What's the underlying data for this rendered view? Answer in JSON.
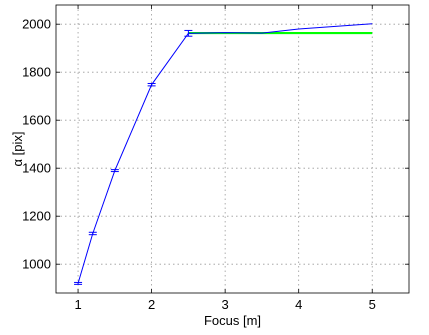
{
  "chart_data": {
    "type": "line",
    "title": "",
    "xlabel": "Focus [m]",
    "ylabel": "α [pix]",
    "xlim": [
      0.7,
      5.5
    ],
    "ylim": [
      880,
      2080
    ],
    "xticks": [
      1,
      2,
      3,
      4,
      5
    ],
    "yticks": [
      1000,
      1200,
      1400,
      1600,
      1800,
      2000
    ],
    "x_tick_labels": [
      "1",
      "2",
      "3",
      "4",
      "5"
    ],
    "y_tick_labels": [
      "1000",
      "1200",
      "1400",
      "1600",
      "1800",
      "2000"
    ],
    "grid": true,
    "legend": "none",
    "series": [
      {
        "color": "#0000ff",
        "x": [
          1,
          1.2,
          1.5,
          2,
          2.5,
          3,
          3.5,
          4,
          5
        ],
        "y": [
          920,
          1128,
          1390,
          1748,
          1962,
          1965,
          1963,
          1980,
          2002
        ],
        "error": [
          4,
          5,
          4,
          5,
          12,
          0,
          0,
          0,
          0
        ]
      },
      {
        "color": "#00ff00",
        "x": [
          2.5,
          5
        ],
        "y": [
          1963,
          1963
        ]
      }
    ]
  }
}
